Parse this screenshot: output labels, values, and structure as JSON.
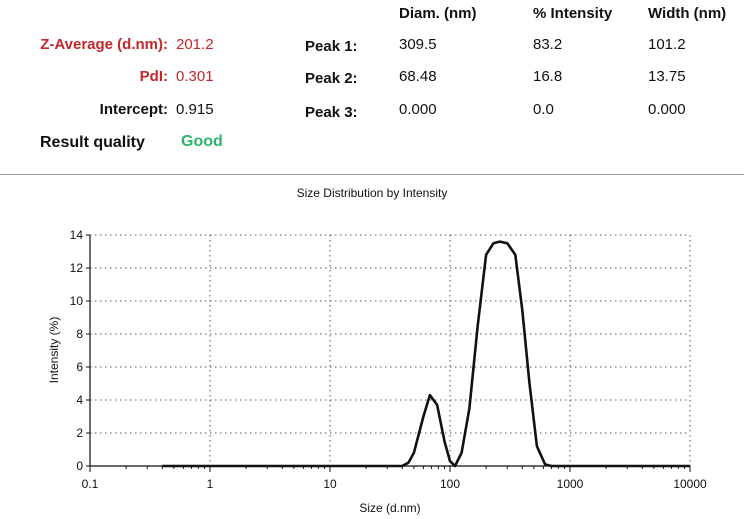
{
  "summary": {
    "z_average_label": "Z-Average (d.nm):",
    "z_average_value": "201.2",
    "pdi_label": "PdI:",
    "pdi_value": "0.301",
    "intercept_label": "Intercept:",
    "intercept_value": "0.915",
    "quality_label": "Result quality",
    "quality_value": "Good"
  },
  "peaks_table": {
    "headers": [
      "Diam. (nm)",
      "% Intensity",
      "Width (nm)"
    ],
    "rows": [
      {
        "label": "Peak 1:",
        "diam": "309.5",
        "intensity": "83.2",
        "width": "101.2"
      },
      {
        "label": "Peak 2:",
        "diam": "68.48",
        "intensity": "16.8",
        "width": "13.75"
      },
      {
        "label": "Peak 3:",
        "diam": "0.000",
        "intensity": "0.0",
        "width": "0.000"
      }
    ]
  },
  "colors": {
    "accent_red": "#c0282d",
    "quality_green": "#2db36a",
    "line": "#111111"
  },
  "chart_data": {
    "type": "line",
    "title": "Size Distribution by Intensity",
    "xlabel": "Size (d.nm)",
    "ylabel": "Intensity (%)",
    "x_scale": "log",
    "xlim": [
      0.1,
      10000
    ],
    "ylim": [
      0,
      14
    ],
    "x_ticks": [
      "0.1",
      "1",
      "10",
      "100",
      "1000",
      "10000"
    ],
    "y_ticks": [
      "0",
      "2",
      "4",
      "6",
      "8",
      "10",
      "12",
      "14"
    ],
    "grid": "dotted",
    "series": [
      {
        "x": [
          0.4,
          10,
          30,
          40,
          45,
          50,
          60,
          68,
          78,
          90,
          100,
          110,
          125,
          145,
          170,
          200,
          230,
          260,
          300,
          350,
          400,
          460,
          530,
          620,
          700,
          1000,
          3000,
          10000
        ],
        "y": [
          0,
          0,
          0,
          0,
          0.2,
          0.8,
          3.0,
          4.3,
          3.7,
          1.5,
          0.3,
          0.0,
          0.8,
          3.5,
          8.5,
          12.8,
          13.5,
          13.6,
          13.5,
          12.8,
          9.5,
          5.0,
          1.2,
          0.1,
          0,
          0,
          0,
          0
        ]
      }
    ]
  }
}
